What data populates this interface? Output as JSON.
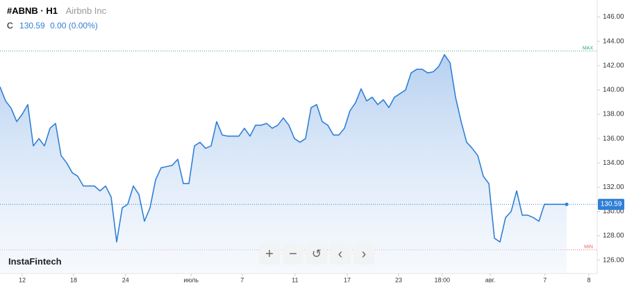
{
  "header": {
    "symbol": "#ABNB · H1",
    "name": "Airbnb Inc",
    "c_label": "C",
    "close": "130.59",
    "change": "0.00 (0.00%)",
    "watermark": "InstaFintech"
  },
  "chart_data": {
    "type": "line",
    "series": [
      {
        "name": "ABNB",
        "color": "#2f7fd6",
        "values": [
          140.26,
          139.1,
          138.5,
          137.4,
          138.0,
          138.8,
          135.4,
          136.0,
          135.4,
          136.85,
          137.25,
          134.6,
          134.0,
          133.2,
          132.9,
          132.1,
          132.1,
          132.1,
          131.7,
          132.1,
          131.2,
          127.5,
          130.3,
          130.6,
          132.1,
          131.4,
          129.2,
          130.3,
          132.6,
          133.6,
          133.7,
          133.8,
          134.3,
          132.3,
          132.3,
          135.4,
          135.7,
          135.2,
          135.4,
          137.4,
          136.3,
          136.2,
          136.2,
          136.2,
          136.85,
          136.2,
          137.1,
          137.1,
          137.25,
          136.85,
          137.1,
          137.7,
          137.1,
          136.0,
          135.7,
          136.0,
          138.55,
          138.8,
          137.4,
          137.1,
          136.3,
          136.3,
          136.85,
          138.3,
          138.95,
          140.1,
          139.1,
          139.4,
          138.8,
          139.2,
          138.55,
          139.4,
          139.7,
          140.0,
          141.4,
          141.7,
          141.7,
          141.4,
          141.5,
          141.95,
          142.9,
          142.25,
          139.4,
          137.4,
          135.7,
          135.2,
          134.6,
          132.9,
          132.3,
          127.8,
          127.5,
          129.5,
          130.0,
          131.7,
          129.7,
          129.7,
          129.5,
          129.2,
          130.6,
          130.59,
          130.59,
          130.59,
          130.59
        ]
      }
    ],
    "xlim": [
      0,
      107.5
    ],
    "xticks": [
      {
        "value": 4,
        "label": "12"
      },
      {
        "value": 13.25,
        "label": "18"
      },
      {
        "value": 22.6,
        "label": "24"
      },
      {
        "value": 34.4,
        "label": "июль"
      },
      {
        "value": 43.6,
        "label": "7"
      },
      {
        "value": 53.1,
        "label": "11"
      },
      {
        "value": 62.5,
        "label": "17"
      },
      {
        "value": 71.75,
        "label": "23"
      },
      {
        "value": 79.6,
        "label": "18:00"
      },
      {
        "value": 88.25,
        "label": "авг."
      },
      {
        "value": 98.1,
        "label": "7"
      },
      {
        "value": 106,
        "label": "8"
      }
    ],
    "ylim": [
      124.9,
      147.4
    ],
    "yticks": [
      {
        "value": 126,
        "label": "126.00"
      },
      {
        "value": 128,
        "label": "128.00"
      },
      {
        "value": 130,
        "label": "130.00"
      },
      {
        "value": 132,
        "label": "132.00"
      },
      {
        "value": 134,
        "label": "134.00"
      },
      {
        "value": 136,
        "label": "136.00"
      },
      {
        "value": 138,
        "label": "138.00"
      },
      {
        "value": 140,
        "label": "140.00"
      },
      {
        "value": 142,
        "label": "142.00"
      },
      {
        "value": 144,
        "label": "144.00"
      },
      {
        "value": 146,
        "label": "146.00"
      }
    ],
    "last_value": 130.59,
    "max_line": {
      "label": "MAX",
      "value": 143.2,
      "color": "#2ea86b"
    },
    "min_line": {
      "label": "MIN",
      "value": 126.85,
      "color": "#e06b6b"
    },
    "grid": false
  }
}
